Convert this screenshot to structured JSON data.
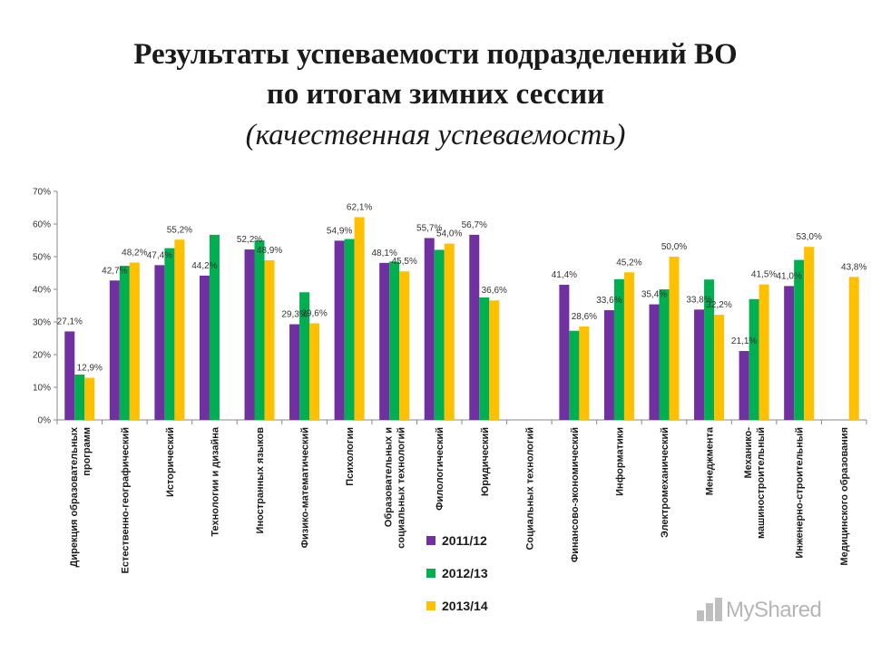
{
  "title": {
    "line1": "Результаты успеваемости подразделений ВО",
    "line2": "по итогам зимних сессии",
    "line3": "(качественная успеваемость)"
  },
  "colors": {
    "s2011": "#7030A0",
    "s2012": "#00B050",
    "s2013": "#FFC000",
    "axis": "#888888"
  },
  "watermark": {
    "text": "MyShared"
  },
  "chart_data": {
    "type": "bar",
    "ylim": [
      0,
      70
    ],
    "yticks": [
      "0%",
      "10%",
      "20%",
      "30%",
      "40%",
      "50%",
      "60%",
      "70%"
    ],
    "grid": false,
    "legend_position": "bottom-center",
    "categories": [
      [
        "Дирекция образовательных",
        "программ"
      ],
      [
        "Естественно-географический"
      ],
      [
        "Исторический"
      ],
      [
        "Технологии и дизайна"
      ],
      [
        "Иностранных языков"
      ],
      [
        "Физико-математический"
      ],
      [
        "Психологии"
      ],
      [
        "Образовательных и",
        "социальных технологий"
      ],
      [
        "Филологический"
      ],
      [
        "Юридический"
      ],
      [
        "Социальных технологий"
      ],
      [
        "Финансово-экономический"
      ],
      [
        "Информатики"
      ],
      [
        "Электромеханический"
      ],
      [
        "Менеджмента"
      ],
      [
        "Механико-",
        "машиностроительный"
      ],
      [
        "Инженерно-строительный"
      ],
      [
        "Медицинского образования"
      ]
    ],
    "series": [
      {
        "name": "2011/12",
        "color": "#7030A0",
        "values": [
          27.1,
          42.7,
          47.4,
          44.2,
          52.2,
          29.3,
          54.9,
          48.1,
          55.7,
          56.7,
          null,
          41.4,
          33.6,
          35.4,
          33.8,
          21.1,
          41.0,
          null
        ],
        "labels": [
          "27,1%",
          "42,7%",
          "47,4%",
          "44,2%",
          "52,2%",
          "29,3%",
          "54,9%",
          "48,1%",
          "55,7%",
          "56,7%",
          "",
          "41,4%",
          "33,6%",
          "35,4%",
          "33,8%",
          "21,1%",
          "41,0%",
          ""
        ]
      },
      {
        "name": "2012/13",
        "color": "#00B050",
        "values": [
          13.9,
          47.2,
          52.6,
          56.7,
          55.0,
          39.1,
          55.4,
          48.5,
          52.1,
          37.5,
          null,
          27.3,
          43.1,
          40.0,
          43.0,
          37.0,
          49.0,
          null
        ],
        "labels": []
      },
      {
        "name": "2013/14",
        "color": "#FFC000",
        "values": [
          12.9,
          48.2,
          55.2,
          null,
          48.9,
          29.6,
          62.1,
          45.5,
          54.0,
          36.6,
          null,
          28.6,
          45.2,
          50.0,
          32.2,
          41.5,
          53.0,
          43.8
        ],
        "labels": [
          "12,9%",
          "48,2%",
          "55,2%",
          "",
          "48,9%",
          "29,6%",
          "62,1%",
          "45,5%",
          "54,0%",
          "36,6%",
          "",
          "28,6%",
          "45,2%",
          "50,0%",
          "32,2%",
          "41,5%",
          "53,0%",
          "43,8%"
        ]
      }
    ]
  }
}
